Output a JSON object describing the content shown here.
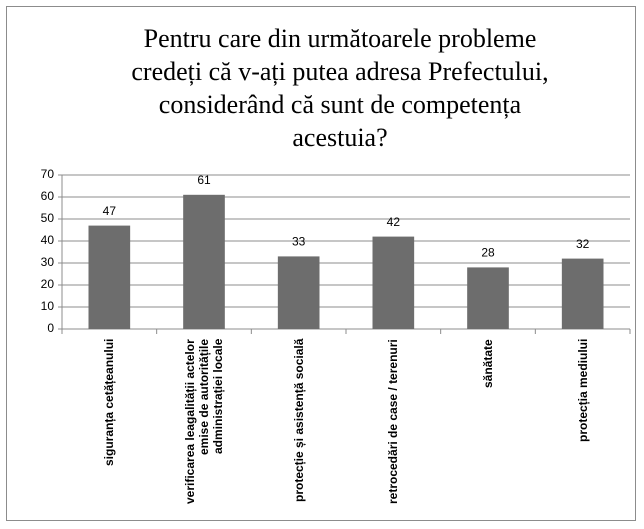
{
  "chart_data": {
    "type": "bar",
    "title": "Pentru care din următoarele probleme credeți că v-ați putea adresa Prefectului, considerând că sunt de competența acestuia?",
    "categories": [
      "siguranța cetățeanului",
      "verificarea leagalității actelor emise de autoritățile administrației locale",
      "protecție și asistență socială",
      "retrocedări de case / terenuri",
      "sănătate",
      "protecția mediului"
    ],
    "values": [
      47,
      61,
      33,
      42,
      28,
      32
    ],
    "color": "#6d6d6d",
    "ylim": [
      0,
      70
    ],
    "yticks": [
      0,
      10,
      20,
      30,
      40,
      50,
      60,
      70
    ],
    "grid": true
  }
}
